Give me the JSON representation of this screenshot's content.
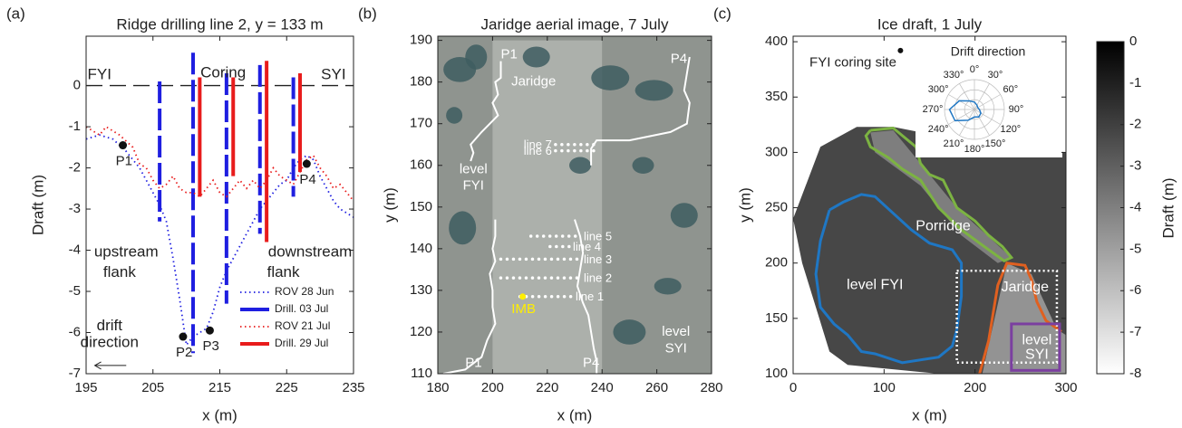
{
  "chart_data": [
    {
      "type": "line",
      "panel_label": "(a)",
      "title": "Ridge drilling line 2, y = 133 m",
      "x_label": "x (m)",
      "y_label": "Draft (m)",
      "xlim": [
        195,
        235
      ],
      "ylim": [
        -7,
        1.2
      ],
      "xticks": [
        195,
        205,
        215,
        225,
        235
      ],
      "yticks": [
        -7,
        -6,
        -5,
        -4,
        -3,
        -2,
        -1,
        0
      ],
      "reference_line": 0,
      "legend": "lower right",
      "series": [
        {
          "name": "ROV 28 Jun",
          "color": "#1f1fe0",
          "style": "dotted",
          "x": [
            195,
            197,
            199,
            201,
            203,
            204,
            205,
            206,
            207,
            208,
            209,
            210,
            211,
            212,
            213,
            214,
            215,
            216,
            217,
            218,
            219,
            220,
            221,
            222,
            223,
            224,
            225,
            226,
            227,
            228,
            229,
            230,
            231,
            232,
            233,
            235
          ],
          "values": [
            -1.3,
            -1.2,
            -1.3,
            -1.6,
            -2.0,
            -2.3,
            -2.6,
            -2.9,
            -3.3,
            -4.2,
            -5.2,
            -6.3,
            -6.1,
            -6.0,
            -5.9,
            -5.5,
            -4.9,
            -4.5,
            -4.2,
            -3.9,
            -3.6,
            -3.3,
            -3.0,
            -2.8,
            -2.6,
            -2.4,
            -2.3,
            -2.0,
            -1.8,
            -1.7,
            -1.8,
            -2.2,
            -2.5,
            -2.8,
            -3.0,
            -3.2
          ]
        },
        {
          "name": "Drill. 03 Jul",
          "color": "#1f1fe0",
          "style": "drill-dashed",
          "x": [
            206,
            211,
            216,
            221,
            226
          ],
          "tops": [
            0.1,
            0.8,
            0.3,
            0.5,
            0.2
          ],
          "values": [
            -3.3,
            -6.5,
            -5.3,
            -3.6,
            -2.7
          ]
        },
        {
          "name": "ROV 21 Jul",
          "color": "#e81c1c",
          "style": "dotted",
          "x": [
            195,
            197,
            198,
            200,
            202,
            203,
            204,
            205,
            206,
            207,
            208,
            209,
            210,
            211,
            212,
            213,
            214,
            215,
            216,
            217,
            218,
            219,
            220,
            221,
            222,
            223,
            224,
            225,
            226,
            227,
            228,
            229,
            230,
            231,
            232,
            233,
            234,
            235
          ],
          "values": [
            -1.0,
            -1.2,
            -1.0,
            -1.2,
            -1.5,
            -1.9,
            -2.0,
            -2.3,
            -2.5,
            -2.4,
            -2.2,
            -2.5,
            -2.6,
            -2.6,
            -2.7,
            -2.5,
            -2.3,
            -2.6,
            -2.7,
            -2.5,
            -2.3,
            -2.5,
            -2.3,
            -2.5,
            -2.3,
            -2.0,
            -2.2,
            -2.3,
            -2.4,
            -2.1,
            -1.8,
            -1.7,
            -2.0,
            -2.2,
            -2.5,
            -2.4,
            -2.6,
            -2.8
          ]
        },
        {
          "name": "Drill. 29 Jul",
          "color": "#e81c1c",
          "style": "drill",
          "x": [
            212,
            217,
            222,
            227
          ],
          "tops": [
            0.2,
            0.2,
            0.6,
            0.3
          ],
          "values": [
            -2.7,
            -2.2,
            -3.8,
            -2.1
          ]
        }
      ],
      "points": [
        {
          "label": "P1",
          "x": 200.5,
          "y": -1.45
        },
        {
          "label": "P2",
          "x": 209.5,
          "y": -6.1
        },
        {
          "label": "P3",
          "x": 213.5,
          "y": -5.95
        },
        {
          "label": "P4",
          "x": 228,
          "y": -1.9
        }
      ],
      "annotations": [
        "FYI",
        "Coring",
        "SYI",
        "upstream",
        "flank",
        "downstream",
        "flank",
        "drift",
        "direction"
      ]
    },
    {
      "type": "image",
      "panel_label": "(b)",
      "title": "Jaridge aerial image, 7 July",
      "x_label": "x (m)",
      "y_label": "y (m)",
      "xlim": [
        180,
        280
      ],
      "ylim": [
        110,
        191
      ],
      "xticks": [
        180,
        200,
        220,
        240,
        260,
        280
      ],
      "yticks": [
        110,
        120,
        130,
        140,
        150,
        160,
        170,
        180,
        190
      ],
      "boundaries": [
        {
          "x": [
            203,
            203,
            201,
            202,
            200,
            202,
            199,
            196,
            192,
            193,
            192
          ],
          "values": [
            185,
            181,
            180,
            177,
            175,
            172,
            170,
            168,
            165,
            163,
            161
          ]
        },
        {
          "x": [
            272,
            271,
            270,
            272,
            271,
            265,
            250,
            238,
            236,
            236
          ],
          "values": [
            186,
            182,
            178,
            175,
            170,
            168,
            166,
            166,
            164,
            160
          ]
        },
        {
          "x": [
            201,
            201,
            200,
            201,
            199,
            200,
            200,
            201,
            198,
            196,
            190,
            182
          ],
          "values": [
            147,
            143,
            140,
            137,
            134,
            130,
            126,
            122,
            118,
            114,
            111,
            110
          ]
        },
        {
          "x": [
            230,
            232,
            233,
            232,
            231,
            233,
            235,
            236,
            237,
            238,
            238
          ],
          "values": [
            147,
            143,
            139,
            135,
            131,
            127,
            124,
            120,
            116,
            113,
            110
          ]
        }
      ],
      "lines": [
        {
          "name": "line 7",
          "y": 165,
          "x": [
            223,
            238
          ]
        },
        {
          "name": "line 6",
          "y": 163.5,
          "x": [
            223,
            238
          ]
        },
        {
          "name": "line 5",
          "y": 143,
          "x": [
            214,
            232
          ]
        },
        {
          "name": "line 4",
          "y": 140.5,
          "x": [
            221,
            228
          ]
        },
        {
          "name": "line 3",
          "y": 137.5,
          "x": [
            203,
            232
          ]
        },
        {
          "name": "line 2",
          "y": 133,
          "x": [
            203,
            232
          ]
        },
        {
          "name": "line 1",
          "y": 128.5,
          "x": [
            210,
            229
          ]
        }
      ],
      "imb": {
        "label": "IMB",
        "x": 211,
        "y": 128.5,
        "color": "#ffee00"
      },
      "annotations": [
        "P1",
        "Jaridge",
        "P4",
        "level",
        "FYI",
        "P1",
        "P4",
        "level",
        "SYI"
      ]
    },
    {
      "type": "map",
      "panel_label": "(c)",
      "title": "Ice draft, 1 July",
      "x_label": "x (m)",
      "y_label": "y (m)",
      "xlim": [
        0,
        300
      ],
      "ylim": [
        100,
        405
      ],
      "xticks": [
        0,
        100,
        200,
        300
      ],
      "yticks": [
        100,
        150,
        200,
        250,
        300,
        350,
        400
      ],
      "contours": [
        {
          "color": "#7cb342",
          "x": [
            85,
            110,
            135,
            140,
            150,
            165,
            180,
            200,
            215,
            230,
            240,
            232,
            210,
            185,
            160,
            140,
            120,
            105,
            85,
            80,
            85
          ],
          "y": [
            320,
            322,
            305,
            290,
            280,
            275,
            250,
            238,
            225,
            215,
            205,
            202,
            215,
            230,
            250,
            275,
            285,
            295,
            305,
            315,
            320
          ]
        },
        {
          "color": "#1f77c4",
          "x": [
            40,
            55,
            75,
            90,
            110,
            130,
            150,
            175,
            185,
            185,
            180,
            175,
            160,
            120,
            90,
            75,
            60,
            45,
            30,
            25,
            30,
            40
          ],
          "y": [
            248,
            255,
            262,
            260,
            245,
            230,
            218,
            212,
            200,
            170,
            140,
            125,
            115,
            110,
            118,
            120,
            135,
            145,
            160,
            190,
            220,
            248
          ]
        },
        {
          "color": "#e06020",
          "x": [
            205,
            210,
            215,
            220,
            225,
            235,
            255,
            262,
            268,
            278,
            295
          ],
          "y": [
            100,
            115,
            130,
            155,
            180,
            200,
            198,
            185,
            165,
            148,
            138
          ]
        }
      ],
      "dotted_box": {
        "x": [
          180,
          290
        ],
        "y": [
          110,
          193
        ]
      },
      "syi_box": {
        "color": "#7b3fa0",
        "x": [
          240,
          293
        ],
        "y": [
          103,
          145
        ]
      },
      "coring_site": {
        "label": "FYI coring site",
        "x": 118,
        "y": 392
      },
      "annotations": [
        "Porridge",
        "level FYI",
        "Jaridge",
        "level",
        "SYI"
      ],
      "colorbar": {
        "label": "Draft (m)",
        "clim": [
          -8,
          0
        ],
        "ticks": [
          0,
          -1,
          -2,
          -3,
          -4,
          -5,
          -6,
          -7,
          -8
        ]
      },
      "polar": {
        "title": "Drift direction",
        "color": "#1f77c4",
        "rlim": [
          0,
          1.2
        ],
        "angles": [
          {
            "value": 0,
            "label": "0°"
          },
          {
            "value": 30,
            "label": "30°"
          },
          {
            "value": 60,
            "label": "60°"
          },
          {
            "value": 90,
            "label": "90°"
          },
          {
            "value": 120,
            "label": "120°"
          },
          {
            "value": 150,
            "label": "150°"
          },
          {
            "value": 180,
            "label": "180°"
          },
          {
            "value": 210,
            "label": "210°"
          },
          {
            "value": 240,
            "label": "240°"
          },
          {
            "value": 270,
            "label": "270°"
          },
          {
            "value": 300,
            "label": "300°"
          },
          {
            "value": 330,
            "label": "330°"
          }
        ],
        "values": [
          0.3,
          0.2,
          0.15,
          0.2,
          0.3,
          0.35,
          0.3,
          0.5,
          0.9,
          1.0,
          0.7,
          0.4
        ]
      }
    }
  ]
}
